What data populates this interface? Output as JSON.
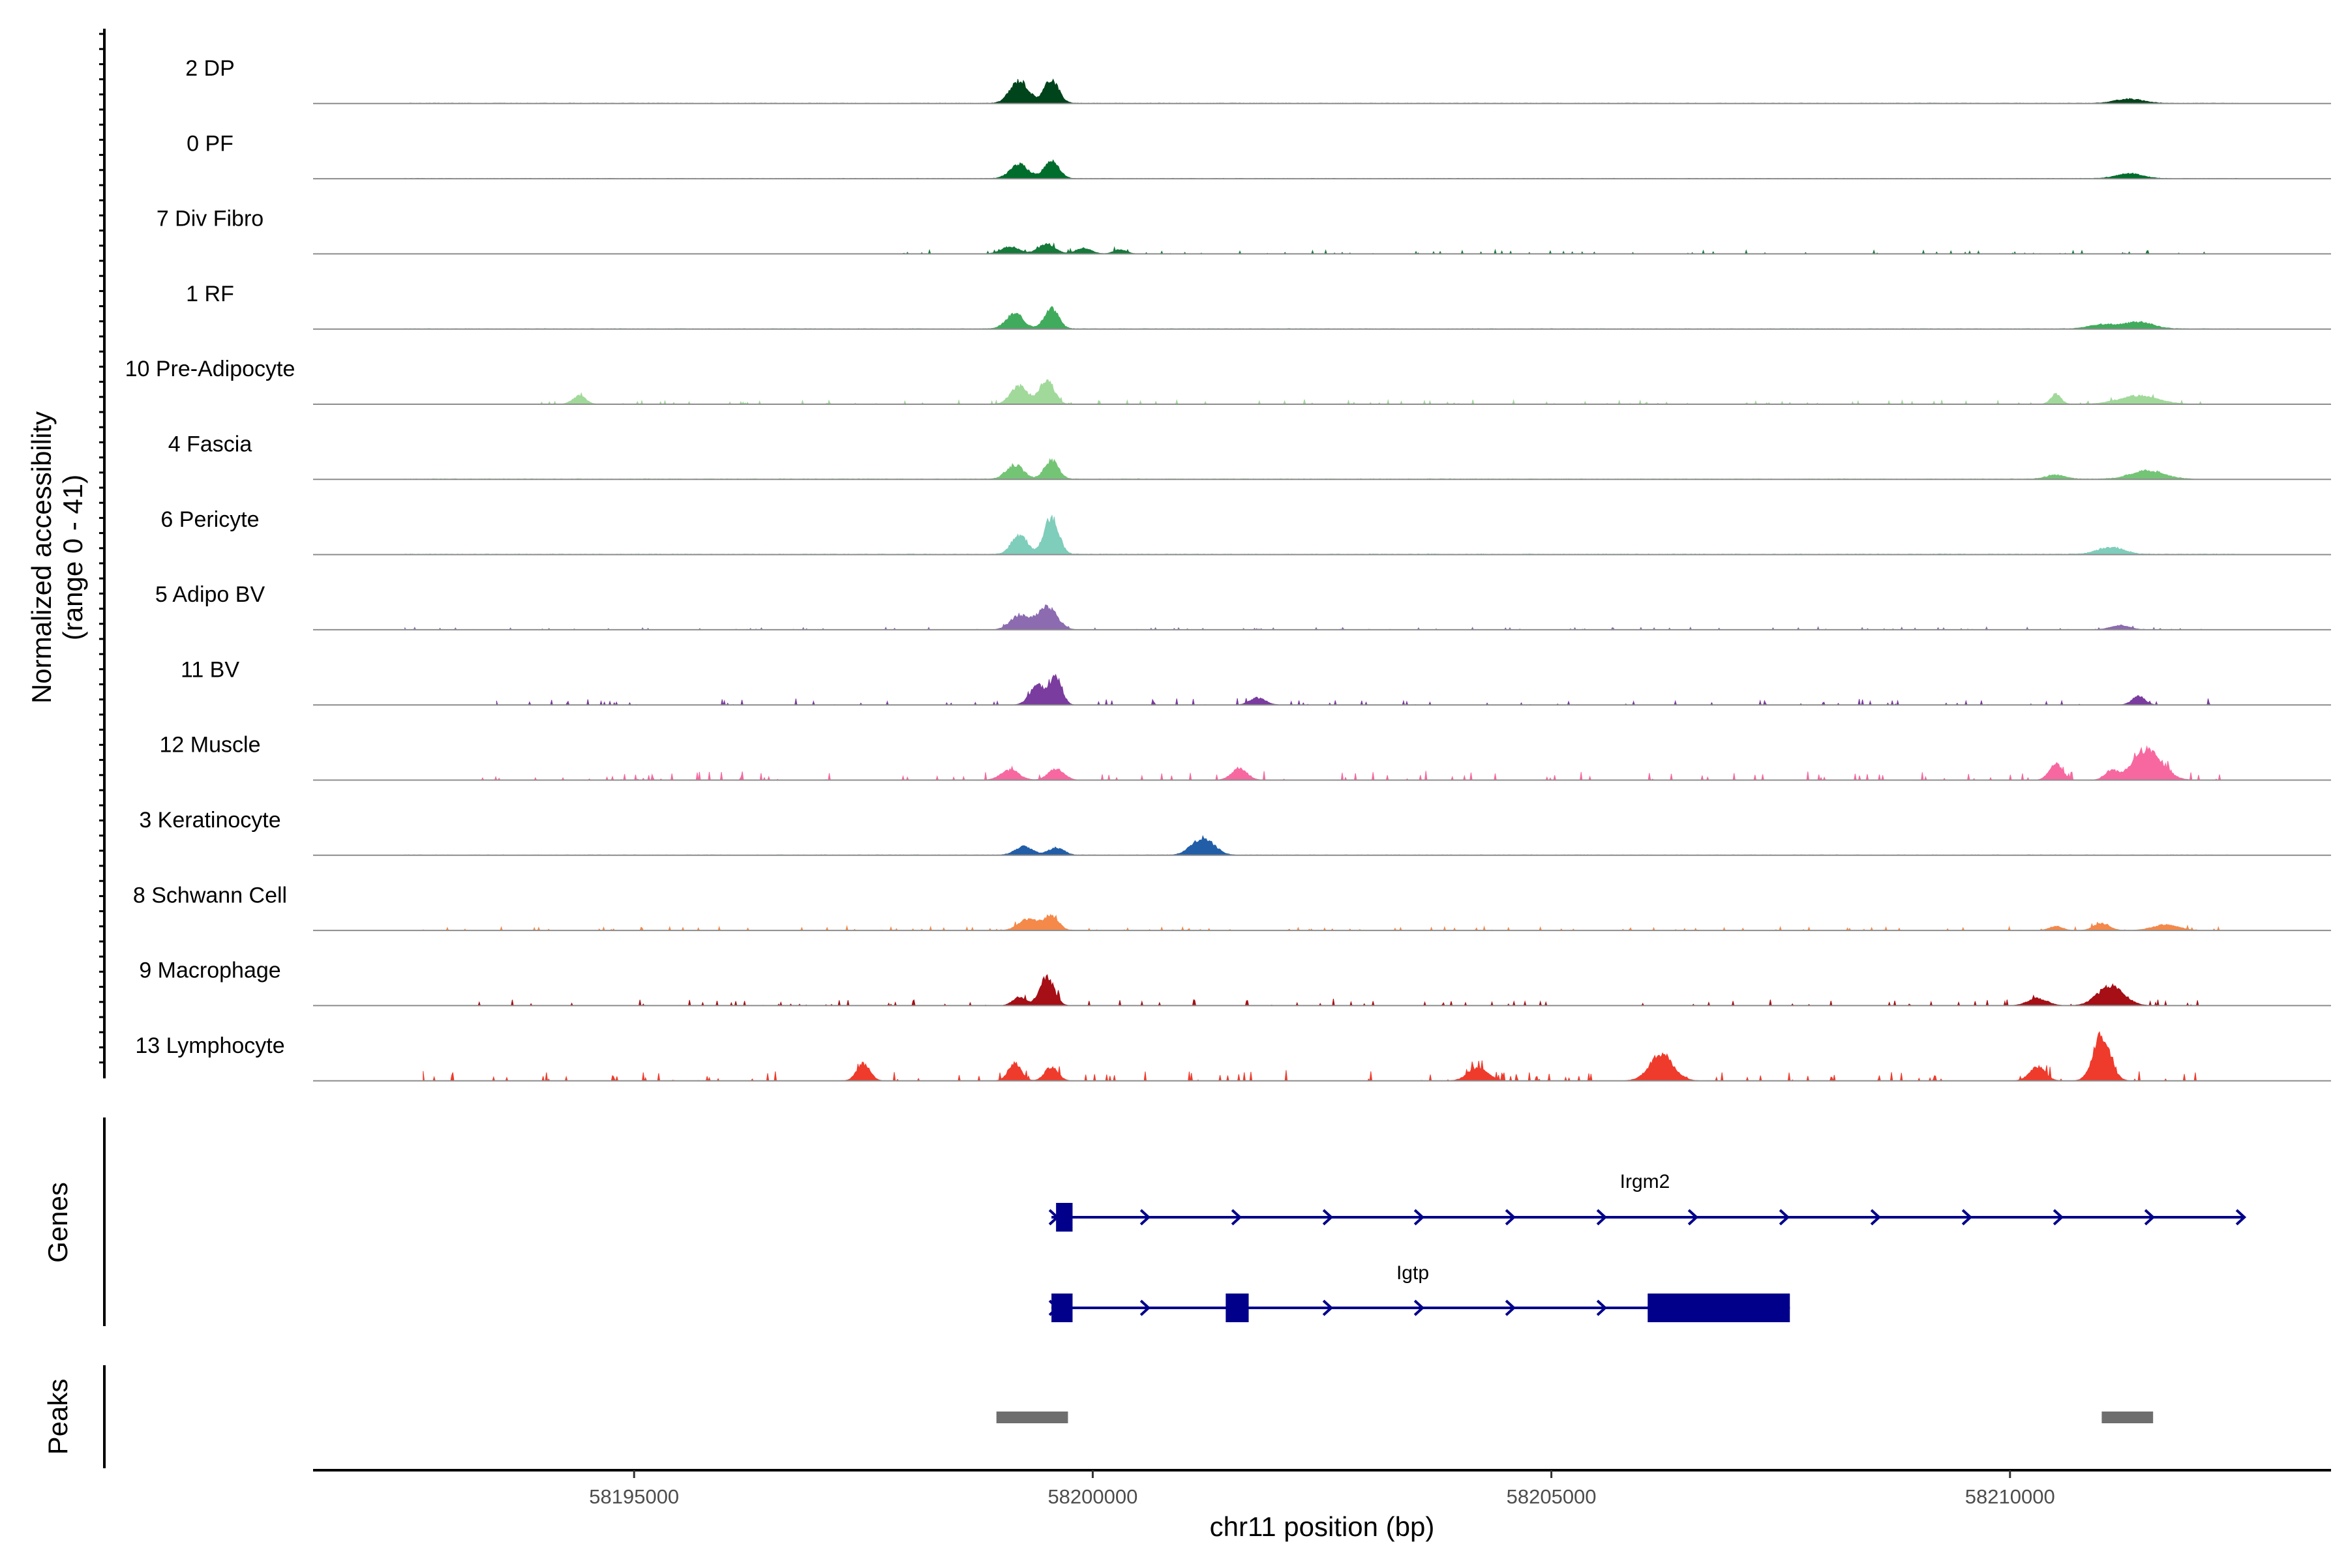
{
  "chart_data": {
    "type": "area",
    "xlabel": "chr11 position (bp)",
    "ylabel_line1": "Normalized accessibility",
    "ylabel_line2": "(range 0 - 41)",
    "y_range": [
      0,
      41
    ],
    "xlim": [
      58191500,
      58213500
    ],
    "x_ticks": [
      58195000,
      58200000,
      58205000,
      58210000
    ],
    "genes_label": "Genes",
    "peaks_label": "Peaks",
    "tracks": [
      {
        "name": "2 DP",
        "color": "#00441b",
        "peaks": [
          [
            58199200,
            16,
            140
          ],
          [
            58199550,
            17,
            110
          ],
          [
            58211300,
            3,
            220
          ]
        ],
        "noise": 0.9,
        "range": [
          58192500,
          58212500
        ],
        "seed": 3
      },
      {
        "name": "0 PF",
        "color": "#006d2c",
        "peaks": [
          [
            58199200,
            10,
            140
          ],
          [
            58199550,
            13,
            110
          ],
          [
            58211300,
            3.5,
            200
          ]
        ],
        "noise": 0.8,
        "range": [
          58192500,
          58212500
        ],
        "seed": 5
      },
      {
        "name": "7 Div Fibro",
        "color": "#157a3a",
        "peaks": [
          [
            58199100,
            5,
            140
          ],
          [
            58199500,
            7,
            130
          ],
          [
            58199900,
            4,
            120
          ],
          [
            58200300,
            3,
            100
          ]
        ],
        "noise": 1.8,
        "range": [
          58197800,
          58212500
        ],
        "seed": 7,
        "sparse": true
      },
      {
        "name": "1 RF",
        "color": "#41ab5d",
        "peaks": [
          [
            58199150,
            11,
            130
          ],
          [
            58199550,
            14,
            110
          ],
          [
            58211000,
            3,
            200
          ],
          [
            58211400,
            5,
            220
          ]
        ],
        "noise": 0.9,
        "range": [
          58192500,
          58212500
        ],
        "seed": 11
      },
      {
        "name": "10 Pre-Adipocyte",
        "color": "#a1d99b",
        "peaks": [
          [
            58199200,
            13,
            130
          ],
          [
            58199500,
            17,
            110
          ],
          [
            58210500,
            7,
            80
          ],
          [
            58211400,
            6,
            300
          ],
          [
            58194400,
            6,
            100
          ]
        ],
        "noise": 2,
        "range": [
          58193500,
          58212200
        ],
        "seed": 13,
        "sparse": true
      },
      {
        "name": "4 Fascia",
        "color": "#74c476",
        "peaks": [
          [
            58199150,
            10,
            130
          ],
          [
            58199550,
            13,
            110
          ],
          [
            58211500,
            6,
            250
          ],
          [
            58210500,
            3,
            150
          ]
        ],
        "noise": 1.2,
        "range": [
          58192500,
          58212000
        ],
        "seed": 17
      },
      {
        "name": "6 Pericyte",
        "color": "#7fcdbb",
        "peaks": [
          [
            58199200,
            14,
            120
          ],
          [
            58199550,
            26,
            110
          ],
          [
            58211100,
            5,
            200
          ]
        ],
        "noise": 1.3,
        "range": [
          58192500,
          58212500
        ],
        "seed": 19
      },
      {
        "name": "5 Adipo BV",
        "color": "#8c6bb1",
        "peaks": [
          [
            58199200,
            10,
            140
          ],
          [
            58199500,
            16,
            150
          ],
          [
            58211200,
            3,
            150
          ]
        ],
        "noise": 1.2,
        "range": [
          58192500,
          58212500
        ],
        "seed": 23,
        "sparse": true
      },
      {
        "name": "11 BV",
        "color": "#7a3c9e",
        "peaks": [
          [
            58199400,
            14,
            120
          ],
          [
            58199600,
            20,
            90
          ],
          [
            58201800,
            5,
            120
          ],
          [
            58211400,
            6,
            100
          ]
        ],
        "noise": 2.8,
        "range": [
          58193500,
          58212600
        ],
        "seed": 29,
        "sparse": true
      },
      {
        "name": "12 Muscle",
        "color": "#f768a1",
        "peaks": [
          [
            58199100,
            7,
            140
          ],
          [
            58199600,
            8,
            120
          ],
          [
            58201600,
            8,
            120
          ],
          [
            58210500,
            12,
            100
          ],
          [
            58211500,
            22,
            220
          ],
          [
            58211100,
            6,
            100
          ]
        ],
        "noise": 4,
        "range": [
          58193300,
          58212300
        ],
        "seed": 31,
        "sparse": true
      },
      {
        "name": "3 Keratinocyte",
        "color": "#225ea8",
        "peaks": [
          [
            58199250,
            6,
            130
          ],
          [
            58199600,
            5,
            120
          ],
          [
            58201200,
            12,
            170
          ]
        ],
        "noise": 0.8,
        "range": [
          58192500,
          58212500
        ],
        "seed": 37
      },
      {
        "name": "8 Schwann Cell",
        "color": "#f4894a",
        "peaks": [
          [
            58199300,
            8,
            150
          ],
          [
            58199550,
            10,
            110
          ],
          [
            58210500,
            3,
            100
          ],
          [
            58211000,
            5,
            120
          ],
          [
            58211700,
            4,
            200
          ]
        ],
        "noise": 1.8,
        "range": [
          58192700,
          58212300
        ],
        "seed": 41,
        "sparse": true
      },
      {
        "name": "9 Macrophage",
        "color": "#a50f15",
        "peaks": [
          [
            58199500,
            20,
            110
          ],
          [
            58199200,
            6,
            100
          ],
          [
            58211100,
            14,
            200
          ],
          [
            58210300,
            5,
            150
          ]
        ],
        "noise": 3,
        "range": [
          58193300,
          58212200
        ],
        "seed": 43,
        "sparse": true
      },
      {
        "name": "13 Lymphocyte",
        "color": "#ef3b2c",
        "peaks": [
          [
            58199150,
            12,
            100
          ],
          [
            58199550,
            10,
            100
          ],
          [
            58206200,
            19,
            180
          ],
          [
            58211000,
            32,
            130
          ],
          [
            58210300,
            10,
            120
          ],
          [
            58197500,
            12,
            100
          ],
          [
            58204200,
            9,
            150
          ]
        ],
        "noise": 4.5,
        "range": [
          58192700,
          58212300
        ],
        "seed": 47,
        "sparse": true
      }
    ],
    "genes": [
      {
        "name": "Irgm2",
        "start": 58199550,
        "end": 58212550,
        "strand": "+",
        "exons": [
          [
            58199600,
            58199780
          ]
        ]
      },
      {
        "name": "Igtp",
        "start": 58199550,
        "end": 58207600,
        "strand": "+",
        "exons": [
          [
            58199550,
            58199780
          ],
          [
            58201450,
            58201700
          ],
          [
            58206050,
            58207600
          ]
        ]
      }
    ],
    "peaks": [
      [
        58198950,
        58199730
      ],
      [
        58211000,
        58211560
      ]
    ]
  }
}
